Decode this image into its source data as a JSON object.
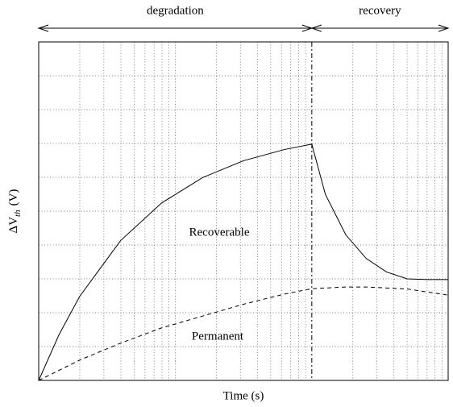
{
  "chart_data": {
    "type": "line",
    "x_label": "Time (s)",
    "y_label": {
      "main": "ΔV",
      "sub": "th",
      "unit": "(V)"
    },
    "phases": [
      "degradation",
      "recovery"
    ],
    "phase_boundary": 0.667,
    "xlim": [
      0,
      1
    ],
    "ylim": [
      0,
      1
    ],
    "series": [
      {
        "name": "Recoverable",
        "color": "#000000",
        "dash": false,
        "x": [
          0,
          0.05,
          0.1,
          0.2,
          0.3,
          0.4,
          0.5,
          0.6,
          0.667,
          0.667,
          0.7,
          0.75,
          0.8,
          0.85,
          0.9,
          0.95,
          1.0
        ],
        "values": [
          0,
          0.136,
          0.248,
          0.413,
          0.524,
          0.599,
          0.649,
          0.682,
          0.698,
          0.698,
          0.55,
          0.43,
          0.36,
          0.32,
          0.3,
          0.298,
          0.298
        ]
      },
      {
        "name": "Permanent",
        "color": "#000000",
        "dash": true,
        "x": [
          0,
          0.1,
          0.2,
          0.3,
          0.4,
          0.5,
          0.6,
          0.667,
          0.75,
          0.8,
          0.9,
          1.0
        ],
        "values": [
          0,
          0.06,
          0.11,
          0.155,
          0.19,
          0.225,
          0.255,
          0.271,
          0.276,
          0.276,
          0.27,
          0.252
        ]
      }
    ]
  }
}
